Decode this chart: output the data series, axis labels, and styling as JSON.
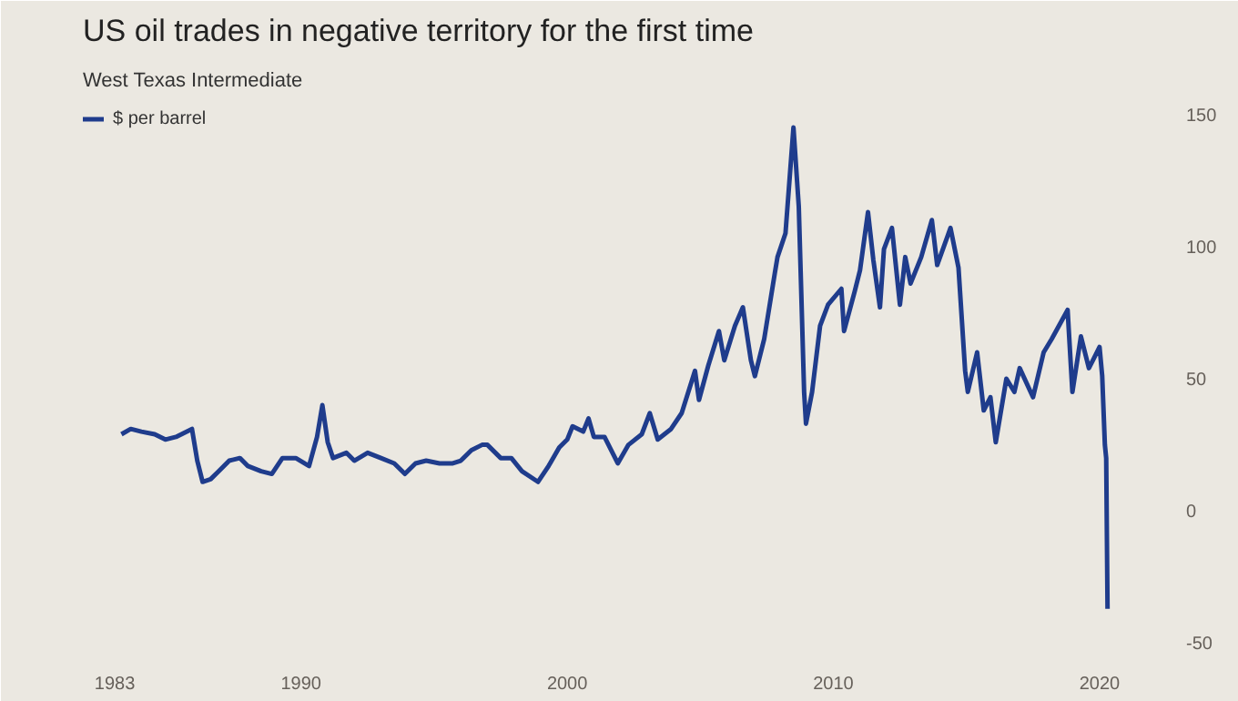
{
  "chart_data": {
    "type": "line",
    "title": "US oil trades in negative territory for the first time",
    "subtitle": "West Texas Intermediate",
    "x": [
      1983.25,
      1983.6,
      1984.0,
      1984.5,
      1984.9,
      1985.3,
      1985.9,
      1986.1,
      1986.3,
      1986.6,
      1986.9,
      1987.3,
      1987.7,
      1988.0,
      1988.5,
      1988.9,
      1989.3,
      1989.8,
      1990.3,
      1990.6,
      1990.8,
      1991.0,
      1991.2,
      1991.7,
      1992.0,
      1992.5,
      1993.0,
      1993.5,
      1993.9,
      1994.3,
      1994.7,
      1995.2,
      1995.7,
      1996.0,
      1996.4,
      1996.8,
      1997.0,
      1997.5,
      1997.9,
      1998.3,
      1998.9,
      1999.3,
      1999.7,
      2000.0,
      2000.2,
      2000.6,
      2000.8,
      2001.0,
      2001.4,
      2001.9,
      2002.3,
      2002.8,
      2003.1,
      2003.4,
      2003.9,
      2004.3,
      2004.8,
      2004.95,
      2005.3,
      2005.7,
      2005.9,
      2006.3,
      2006.6,
      2006.9,
      2007.05,
      2007.4,
      2007.8,
      2007.9,
      2008.2,
      2008.5,
      2008.7,
      2008.9,
      2008.97,
      2009.2,
      2009.5,
      2009.8,
      2010.3,
      2010.4,
      2010.8,
      2011.0,
      2011.3,
      2011.5,
      2011.75,
      2011.9,
      2012.2,
      2012.5,
      2012.7,
      2012.9,
      2013.3,
      2013.7,
      2013.9,
      2014.4,
      2014.7,
      2014.95,
      2015.05,
      2015.4,
      2015.65,
      2015.9,
      2016.1,
      2016.5,
      2016.8,
      2017.0,
      2017.5,
      2017.9,
      2018.2,
      2018.8,
      2018.98,
      2019.3,
      2019.6,
      2019.8,
      2020.0,
      2020.1,
      2020.2,
      2020.25,
      2020.3
    ],
    "series": [
      {
        "name": "$ per barrel",
        "color": "#1f3c8c",
        "values": [
          29,
          31,
          30,
          29,
          27,
          28,
          31,
          19,
          11,
          12,
          15,
          19,
          20,
          17,
          15,
          14,
          20,
          20,
          17,
          28,
          40,
          26,
          20,
          22,
          19,
          22,
          20,
          18,
          14,
          18,
          19,
          18,
          18,
          19,
          23,
          25,
          25,
          20,
          20,
          15,
          11,
          17,
          24,
          27,
          32,
          30,
          35,
          28,
          28,
          18,
          25,
          29,
          37,
          27,
          31,
          37,
          53,
          42,
          55,
          68,
          57,
          70,
          77,
          57,
          51,
          65,
          90,
          96,
          105,
          145,
          115,
          45,
          33,
          45,
          70,
          78,
          84,
          68,
          83,
          91,
          113,
          95,
          77,
          99,
          107,
          78,
          96,
          86,
          96,
          110,
          93,
          107,
          92,
          53,
          45,
          60,
          38,
          43,
          26,
          50,
          45,
          54,
          43,
          60,
          65,
          76,
          45,
          66,
          54,
          58,
          62,
          51,
          25,
          20,
          -37
        ]
      }
    ],
    "xlim": [
      1981.8,
      2022.5
    ],
    "xticks": [
      1983,
      1990,
      2000,
      2010,
      2020
    ],
    "ylim": [
      -55,
      155
    ],
    "yticks": [
      -50,
      0,
      50,
      100,
      150
    ],
    "grid": false,
    "legend": "top left"
  }
}
